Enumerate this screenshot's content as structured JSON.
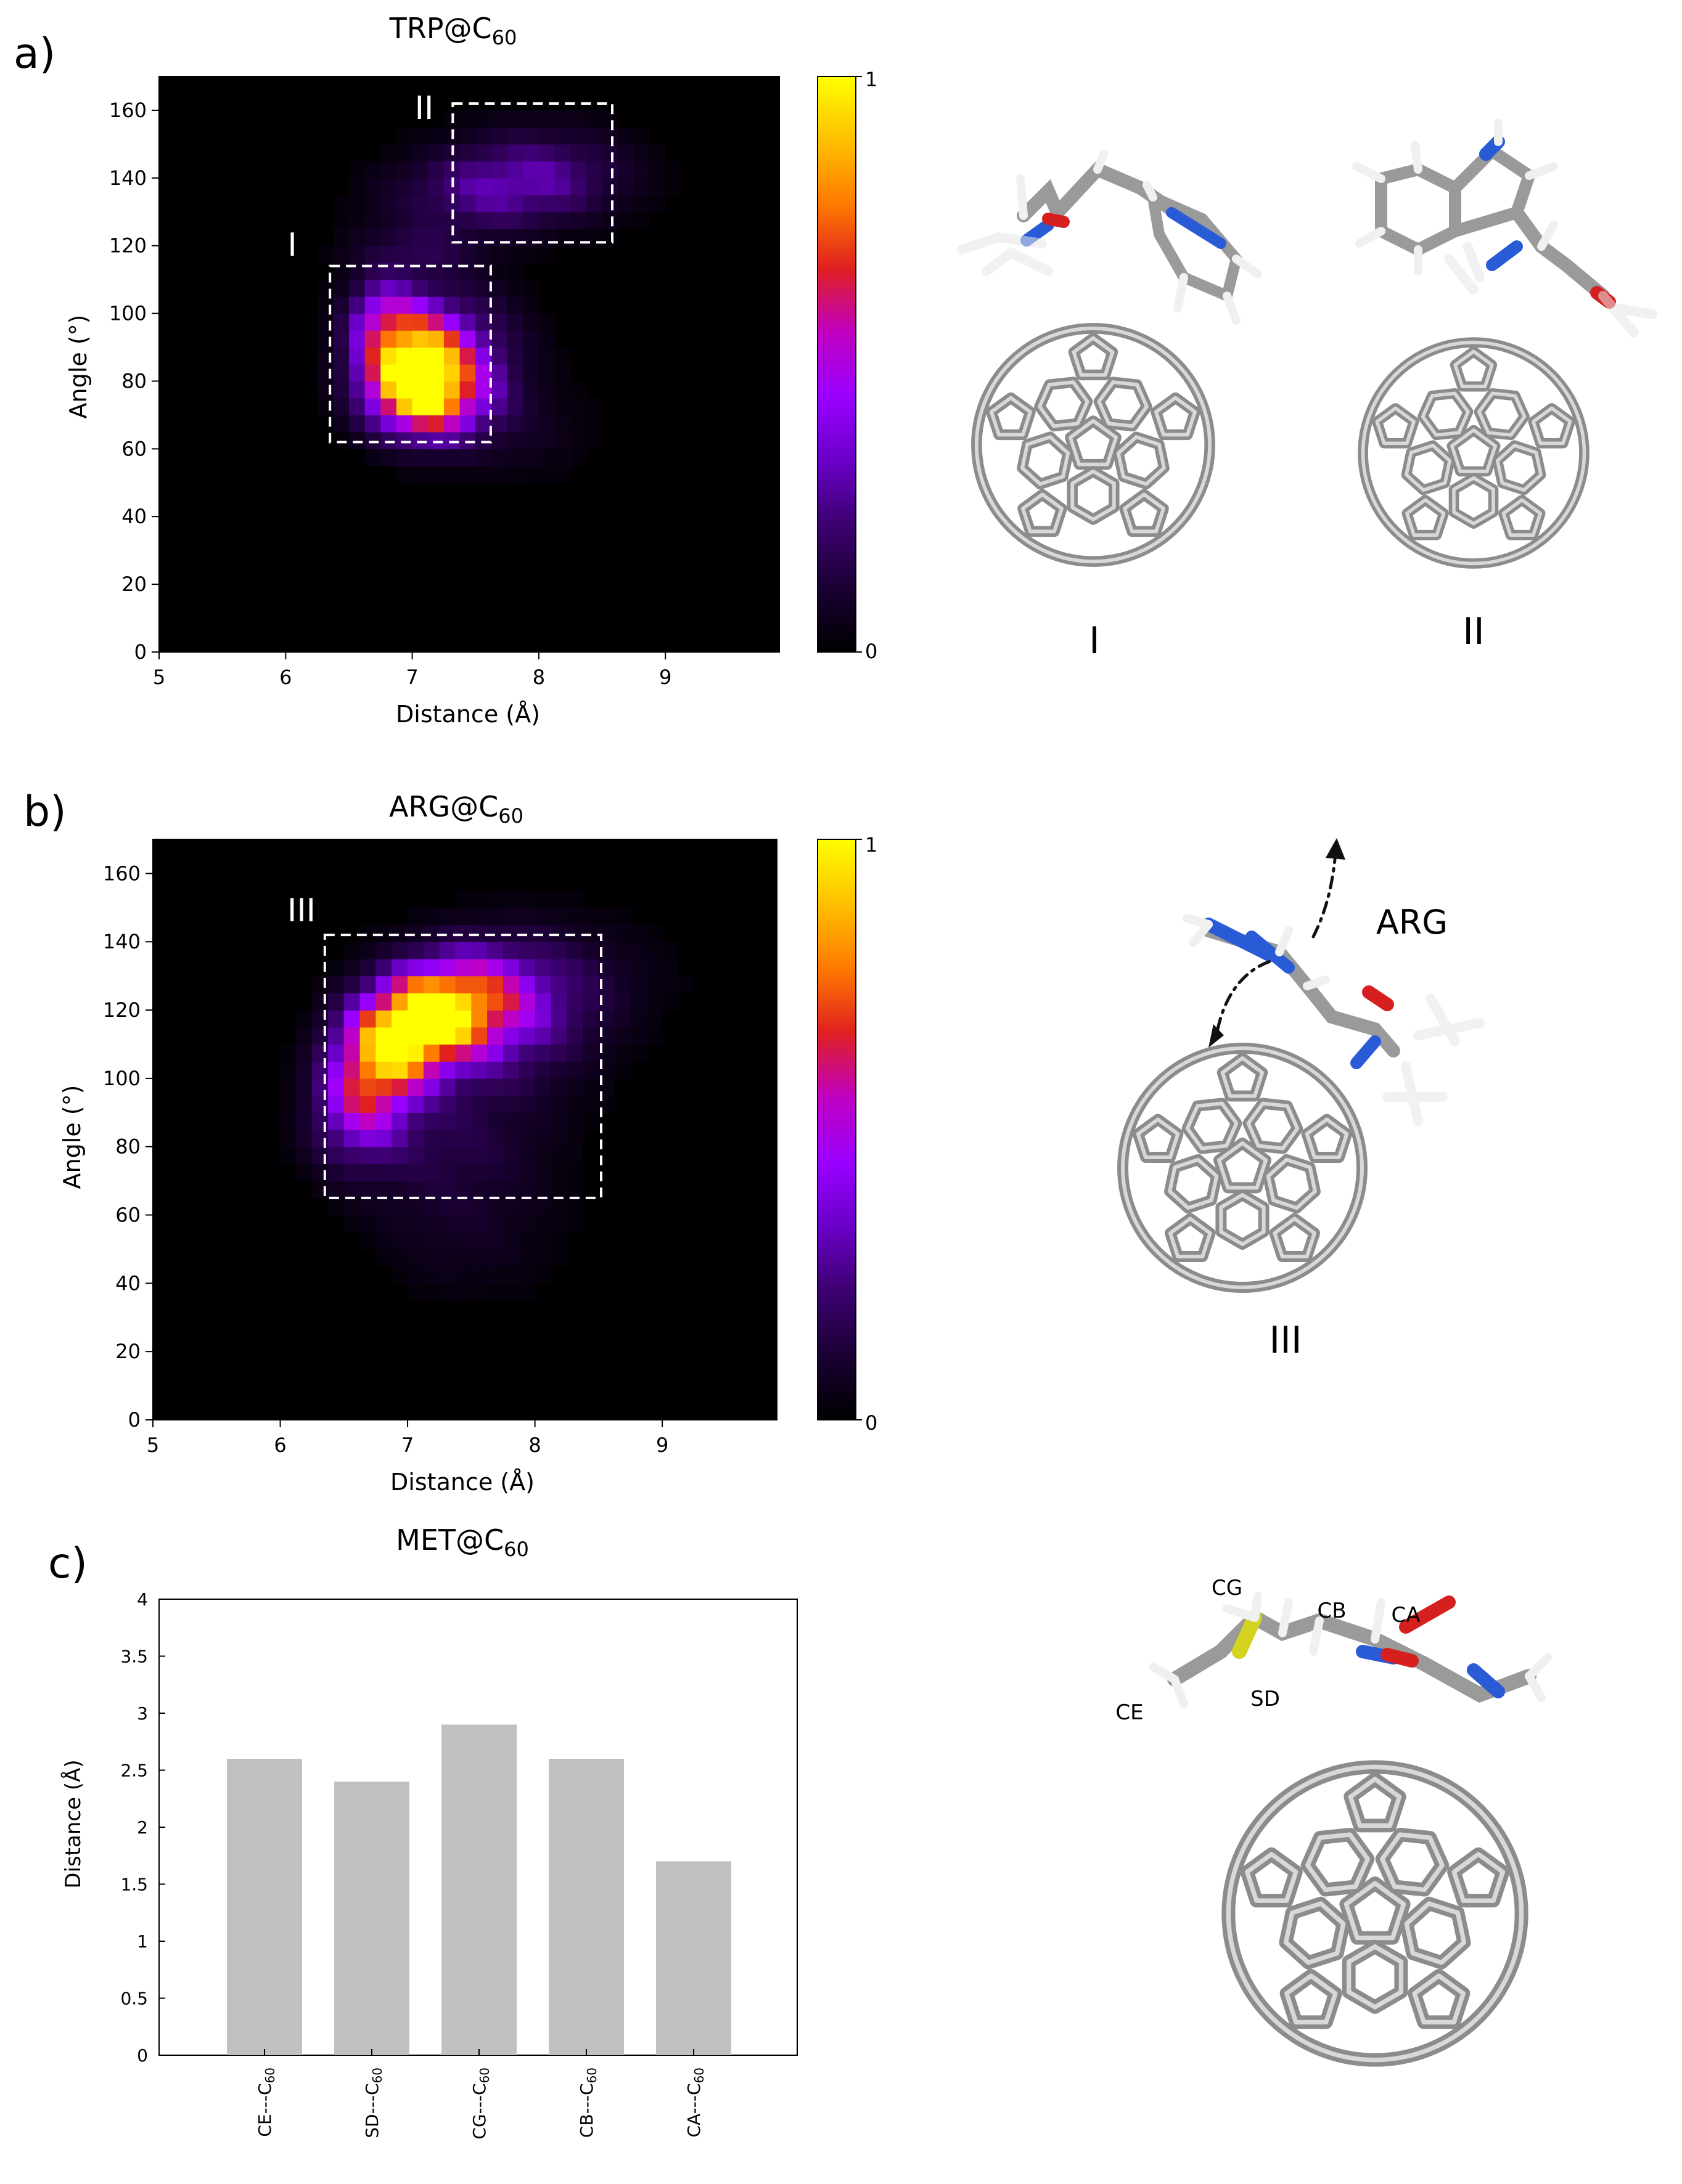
{
  "panels": {
    "a": {
      "label": "a)",
      "title_main": "TRP@C",
      "title_sub": "60",
      "box_labels": [
        "I",
        "II"
      ],
      "mol_labels": [
        "I",
        "II"
      ]
    },
    "b": {
      "label": "b)",
      "title_main": "ARG@C",
      "title_sub": "60",
      "box_labels": [
        "III"
      ],
      "mol_labels": [
        "III"
      ],
      "mol_text": "ARG"
    },
    "c": {
      "label": "c)",
      "title_main": "MET@C",
      "title_sub": "60",
      "atom_labels": [
        "CG",
        "CB",
        "CA",
        "CE",
        "SD"
      ]
    }
  },
  "colors": {
    "inferno": [
      "#000004",
      "#1b0c41",
      "#4a0c6b",
      "#781c6d",
      "#a52c60",
      "#cf4446",
      "#ed6925",
      "#fb9b06",
      "#f7d13d",
      "#fcffa4"
    ],
    "heatmap": [
      "#000000",
      "#1a0033",
      "#3c0070",
      "#6a00c8",
      "#9a00ff",
      "#c000c0",
      "#e02020",
      "#ff7a00",
      "#ffc000",
      "#ffff00"
    ],
    "bar": "#c0c0c0",
    "box": "#ffffff",
    "atom_c": "#a8a8a8",
    "atom_n": "#2a5bd7",
    "atom_o": "#d62020",
    "atom_s": "#d4d420",
    "atom_h": "#f2f2f2"
  },
  "chart_data": [
    {
      "type": "heatmap",
      "panel": "a",
      "title": "TRP@C60",
      "xlabel": "Distance (Å)",
      "ylabel": "Angle (°)",
      "xlim": [
        5,
        9.9
      ],
      "ylim": [
        0,
        170
      ],
      "xticks": [
        5,
        6,
        7,
        8,
        9
      ],
      "yticks": [
        0,
        20,
        40,
        60,
        80,
        100,
        120,
        140,
        160
      ],
      "colorbar": {
        "min_label": "0",
        "max_label": "1"
      },
      "bin_width": 0.125,
      "bin_height": 5,
      "hotspots": [
        {
          "x": 7.0,
          "y": 85,
          "sx": 0.28,
          "sy": 11,
          "amp": 1.0
        },
        {
          "x": 7.15,
          "y": 75,
          "sx": 0.3,
          "sy": 8,
          "amp": 0.55
        },
        {
          "x": 6.75,
          "y": 100,
          "sx": 0.18,
          "sy": 7,
          "amp": 0.35
        },
        {
          "x": 7.4,
          "y": 88,
          "sx": 0.35,
          "sy": 13,
          "amp": 0.25
        },
        {
          "x": 7.0,
          "y": 118,
          "sx": 0.35,
          "sy": 6,
          "amp": 0.15
        },
        {
          "x": 7.6,
          "y": 135,
          "sx": 0.55,
          "sy": 8,
          "amp": 0.22
        },
        {
          "x": 8.0,
          "y": 143,
          "sx": 0.5,
          "sy": 9,
          "amp": 0.2
        },
        {
          "x": 7.8,
          "y": 65,
          "sx": 0.45,
          "sy": 10,
          "amp": 0.07
        }
      ],
      "regions": [
        {
          "label": "I",
          "x": [
            6.35,
            7.62
          ],
          "y": [
            62,
            114
          ]
        },
        {
          "label": "II",
          "x": [
            7.32,
            8.58
          ],
          "y": [
            121,
            162
          ]
        }
      ]
    },
    {
      "type": "heatmap",
      "panel": "b",
      "title": "ARG@C60",
      "xlabel": "Distance (Å)",
      "ylabel": "Angle (°)",
      "xlim": [
        5,
        9.9
      ],
      "ylim": [
        0,
        170
      ],
      "xticks": [
        5,
        6,
        7,
        8,
        9
      ],
      "yticks": [
        0,
        20,
        40,
        60,
        80,
        100,
        120,
        140,
        160
      ],
      "colorbar": {
        "min_label": "0",
        "max_label": "1"
      },
      "bin_width": 0.125,
      "bin_height": 5,
      "hotspots": [
        {
          "x": 7.05,
          "y": 115,
          "sx": 0.3,
          "sy": 9,
          "amp": 0.85
        },
        {
          "x": 6.75,
          "y": 103,
          "sx": 0.25,
          "sy": 10,
          "amp": 0.65
        },
        {
          "x": 7.4,
          "y": 123,
          "sx": 0.35,
          "sy": 9,
          "amp": 0.55
        },
        {
          "x": 6.6,
          "y": 88,
          "sx": 0.25,
          "sy": 10,
          "amp": 0.3
        },
        {
          "x": 7.7,
          "y": 118,
          "sx": 0.5,
          "sy": 14,
          "amp": 0.3
        },
        {
          "x": 7.3,
          "y": 80,
          "sx": 0.55,
          "sy": 16,
          "amp": 0.15
        },
        {
          "x": 8.1,
          "y": 130,
          "sx": 0.6,
          "sy": 12,
          "amp": 0.1
        },
        {
          "x": 7.5,
          "y": 50,
          "sx": 0.5,
          "sy": 12,
          "amp": 0.05
        }
      ],
      "regions": [
        {
          "label": "III",
          "x": [
            6.35,
            8.52
          ],
          "y": [
            65,
            142
          ]
        }
      ]
    },
    {
      "type": "bar",
      "panel": "c",
      "title": "MET@C60",
      "xlabel": "",
      "ylabel": "Distance (Å)",
      "ylim": [
        0,
        4
      ],
      "yticks": [
        "0",
        "0.5",
        "1",
        "1.5",
        "2",
        "2.5",
        "3",
        "3.5",
        "4"
      ],
      "categories": [
        "CE---C60",
        "SD---C60",
        "CG---C60",
        "CB---C60",
        "CA---C60"
      ],
      "category_atoms": [
        "CE",
        "SD",
        "CG",
        "CB",
        "CA"
      ],
      "category_suffix": "---C",
      "category_sub": "60",
      "values": [
        2.6,
        2.4,
        2.9,
        2.6,
        1.7
      ]
    }
  ]
}
